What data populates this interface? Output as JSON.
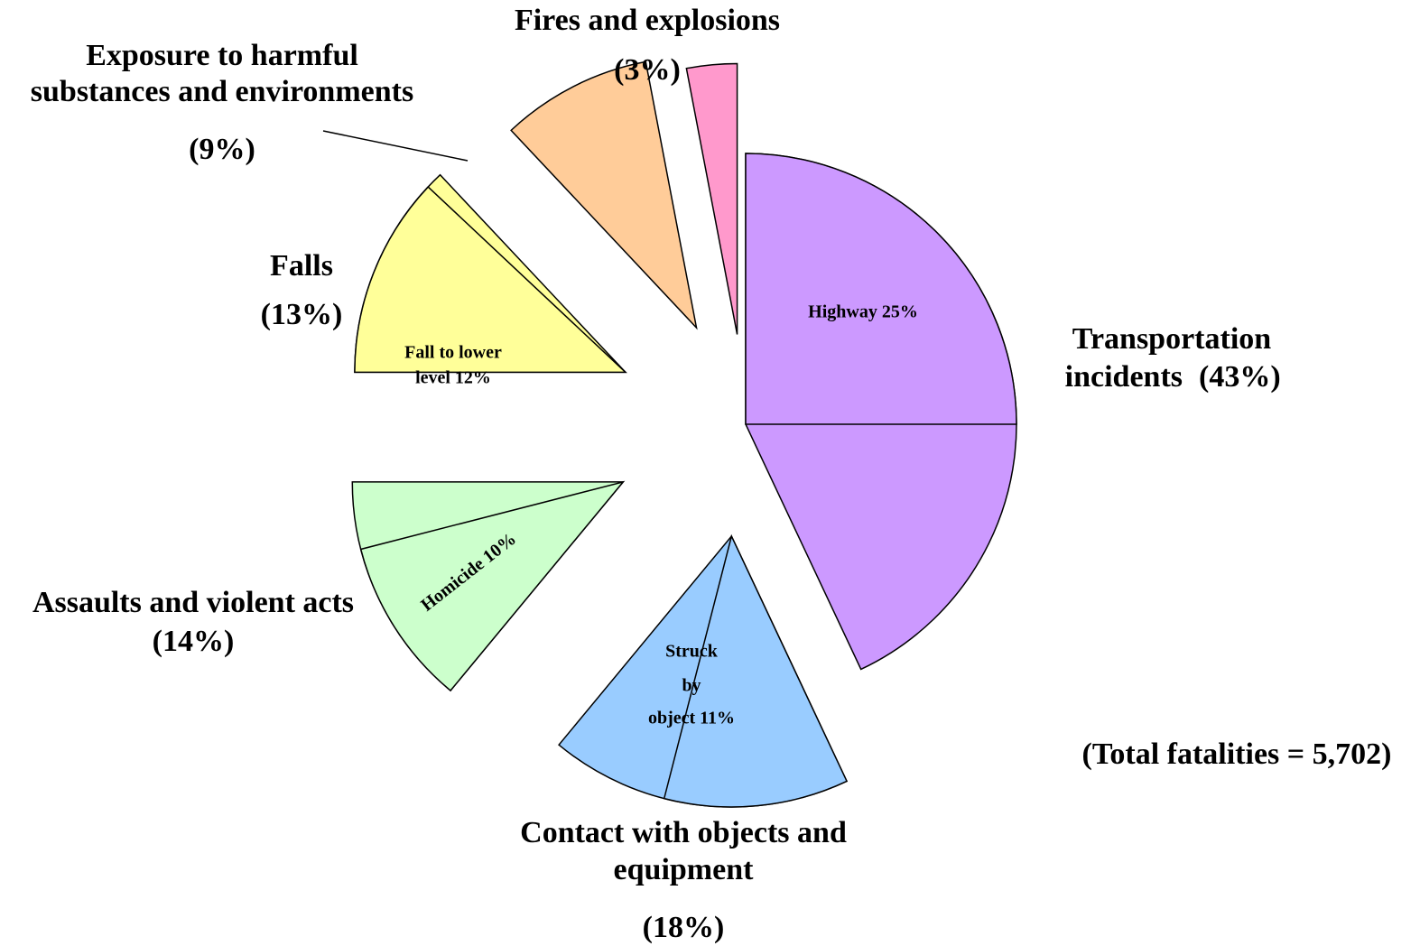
{
  "chart_data": {
    "type": "pie",
    "categories": [
      [
        "Transportation",
        "incidents"
      ],
      [
        "Contact with objects and",
        "equipment"
      ],
      [
        "Assaults and violent acts"
      ],
      [
        "Falls"
      ],
      [
        "Exposure to harmful",
        "substances and environments"
      ],
      [
        "Fires and explosions"
      ]
    ],
    "values": [
      43,
      18,
      14,
      13,
      9,
      3
    ],
    "value_labels": [
      "(43%)",
      "(18%)",
      "(14%)",
      "(13%)",
      "(9%)",
      "(3%)"
    ],
    "colors": [
      "#cc99ff",
      "#99ccff",
      "#ccffcc",
      "#ffff99",
      "#ffcc99",
      "#ff99cc"
    ],
    "details": [
      {
        "lines": [
          "Highway 25%"
        ],
        "value": 25
      },
      {
        "lines": [
          "Struck",
          "by",
          "object 11%"
        ],
        "value": 11
      },
      {
        "lines": [
          "Homicide 10%"
        ],
        "value": 10
      },
      {
        "lines": [
          "Fall to lower",
          "level  12%"
        ],
        "value": 12
      }
    ],
    "annotation": "(Total fatalities = 5,702)"
  }
}
